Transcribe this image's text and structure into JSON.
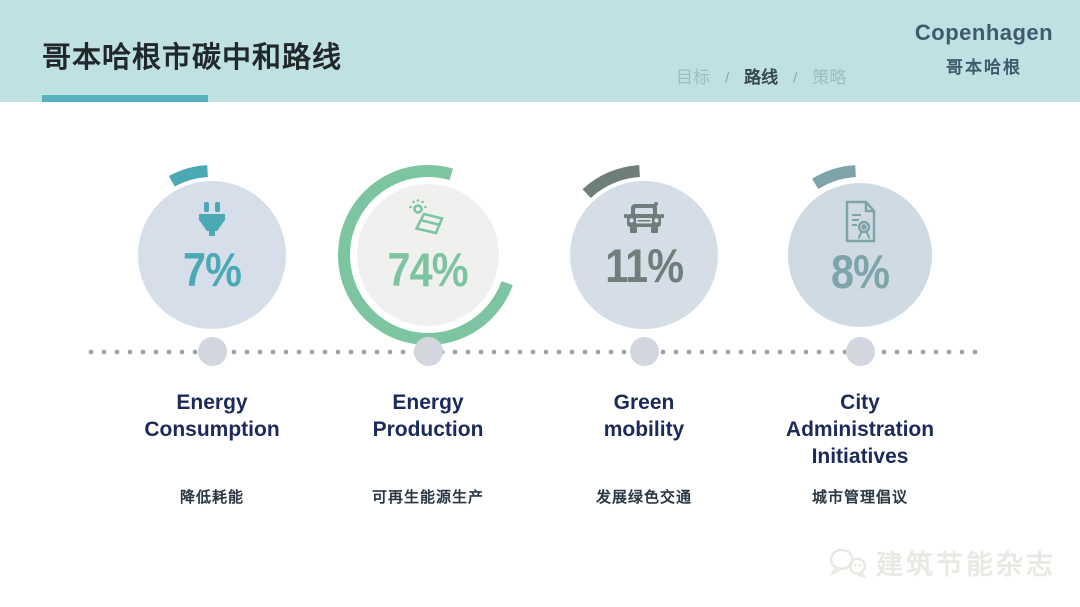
{
  "header": {
    "title": "哥本哈根市碳中和路线",
    "breadcrumb": [
      {
        "label": "目标",
        "active": false
      },
      {
        "label": "路线",
        "active": true
      },
      {
        "label": "策略",
        "active": false
      }
    ],
    "breadcrumb_separator": "/",
    "logo_en": "Copenhagen",
    "logo_zh": "哥本哈根"
  },
  "chart_data": {
    "type": "pie",
    "subtype": "donut-progress-gauges",
    "title": "哥本哈根市碳中和路线",
    "unit": "%",
    "categories": [
      "Energy Consumption",
      "Energy Production",
      "Green mobility",
      "City Administration Initiatives"
    ],
    "values": [
      7,
      74,
      11,
      8
    ]
  },
  "items": [
    {
      "value": 7,
      "pct": "7%",
      "icon": "plug-icon",
      "title_en": "Energy\nConsumption",
      "title_zh": "降低耗能",
      "accent": "#4BA9B6",
      "fill": "#D6DFE9"
    },
    {
      "value": 74,
      "pct": "74%",
      "icon": "solar-panel-icon",
      "title_en": "Energy\nProduction",
      "title_zh": "可再生能源生产",
      "accent": "#7CC5A0",
      "fill": "#F0F1EE"
    },
    {
      "value": 11,
      "pct": "11%",
      "icon": "car-icon",
      "title_en": "Green\nmobility",
      "title_zh": "发展绿色交通",
      "accent": "#6F7E7A",
      "fill": "#D5DDE6"
    },
    {
      "value": 8,
      "pct": "8%",
      "icon": "certificate-icon",
      "title_en": "City\nAdministration\nInitiatives",
      "title_zh": "城市管理倡议",
      "accent": "#7EA4AA",
      "fill": "#CFDAE3"
    }
  ],
  "watermark": {
    "text": "建筑节能杂志"
  }
}
